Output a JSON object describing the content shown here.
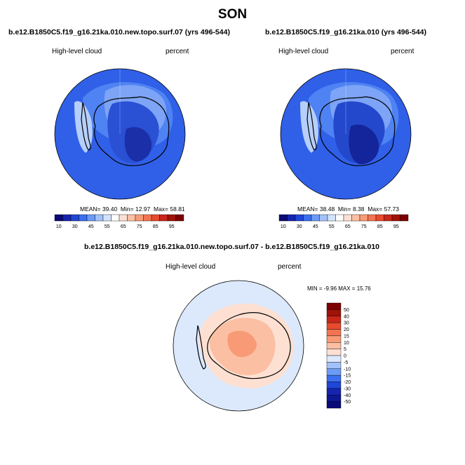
{
  "title": "SON",
  "panels": [
    {
      "case": "b.e12.B1850C5.f19_g16.21ka.010.new.topo.surf.07 (yrs 496-544)",
      "variable": "High-level cloud",
      "units": "percent",
      "stats": {
        "mean_label": "MEAN=",
        "mean": "39.40",
        "min_label": "Min=",
        "min": "12.97",
        "max_label": "Max=",
        "max": "58.81"
      }
    },
    {
      "case": "b.e12.B1850C5.f19_g16.21ka.010 (yrs 496-544)",
      "variable": "High-level cloud",
      "units": "percent",
      "stats": {
        "mean_label": "MEAN=",
        "mean": "38.48",
        "min_label": "Min=",
        "min": "8.38",
        "max_label": "Max=",
        "max": "57.73"
      }
    }
  ],
  "colorbar": {
    "labels": [
      "10",
      "30",
      "45",
      "55",
      "65",
      "75",
      "85",
      "95"
    ],
    "colors": [
      "#0a0a78",
      "#1525b0",
      "#2046d8",
      "#3a6ff0",
      "#6c9bf6",
      "#a3c2f9",
      "#d2e3fc",
      "#ffffff",
      "#fde0d2",
      "#fbbfa3",
      "#f99a76",
      "#f47452",
      "#e84a2e",
      "#c9261a",
      "#a01208",
      "#7d0000"
    ]
  },
  "diff_panel": {
    "title": "b.e12.B1850C5.f19_g16.21ka.010.new.topo.surf.07 - b.e12.B1850C5.f19_g16.21ka.010",
    "variable": "High-level cloud",
    "units": "percent",
    "minmax": "MIN =  -9.96 MAX =  15.76",
    "colorbar_labels": [
      "50",
      "40",
      "30",
      "20",
      "15",
      "10",
      "5",
      "0",
      "-5",
      "-10",
      "-15",
      "-20",
      "-30",
      "-40",
      "-50"
    ],
    "colorbar_colors": [
      "#7d0000",
      "#a01208",
      "#c9261a",
      "#e84a2e",
      "#f47452",
      "#f99a76",
      "#fbbfa3",
      "#fde0d2",
      "#dce9fc",
      "#a3c2f9",
      "#6c9bf6",
      "#3a6ff0",
      "#2046d8",
      "#1525b0",
      "#0d1894",
      "#0a0a78"
    ]
  },
  "chart_data": [
    {
      "type": "heatmap",
      "projection": "south polar stereographic",
      "title": "b.e12.B1850C5.f19_g16.21ka.010.new.topo.surf.07 (yrs 496-544)",
      "variable": "High-level cloud",
      "units": "percent",
      "mean": 39.4,
      "min": 12.97,
      "max": 58.81,
      "levels": [
        10,
        15,
        20,
        25,
        30,
        35,
        40,
        45,
        50,
        55,
        60,
        65,
        70,
        75,
        80,
        85,
        90,
        95
      ]
    },
    {
      "type": "heatmap",
      "projection": "south polar stereographic",
      "title": "b.e12.B1850C5.f19_g16.21ka.010 (yrs 496-544)",
      "variable": "High-level cloud",
      "units": "percent",
      "mean": 38.48,
      "min": 8.38,
      "max": 57.73,
      "levels": [
        10,
        15,
        20,
        25,
        30,
        35,
        40,
        45,
        50,
        55,
        60,
        65,
        70,
        75,
        80,
        85,
        90,
        95
      ]
    },
    {
      "type": "heatmap",
      "projection": "south polar stereographic",
      "title": "b.e12.B1850C5.f19_g16.21ka.010.new.topo.surf.07 - b.e12.B1850C5.f19_g16.21ka.010",
      "variable": "High-level cloud",
      "units": "percent",
      "min": -9.96,
      "max": 15.76,
      "levels": [
        -50,
        -40,
        -30,
        -20,
        -15,
        -10,
        -5,
        0,
        5,
        10,
        15,
        20,
        30,
        40,
        50
      ]
    }
  ]
}
